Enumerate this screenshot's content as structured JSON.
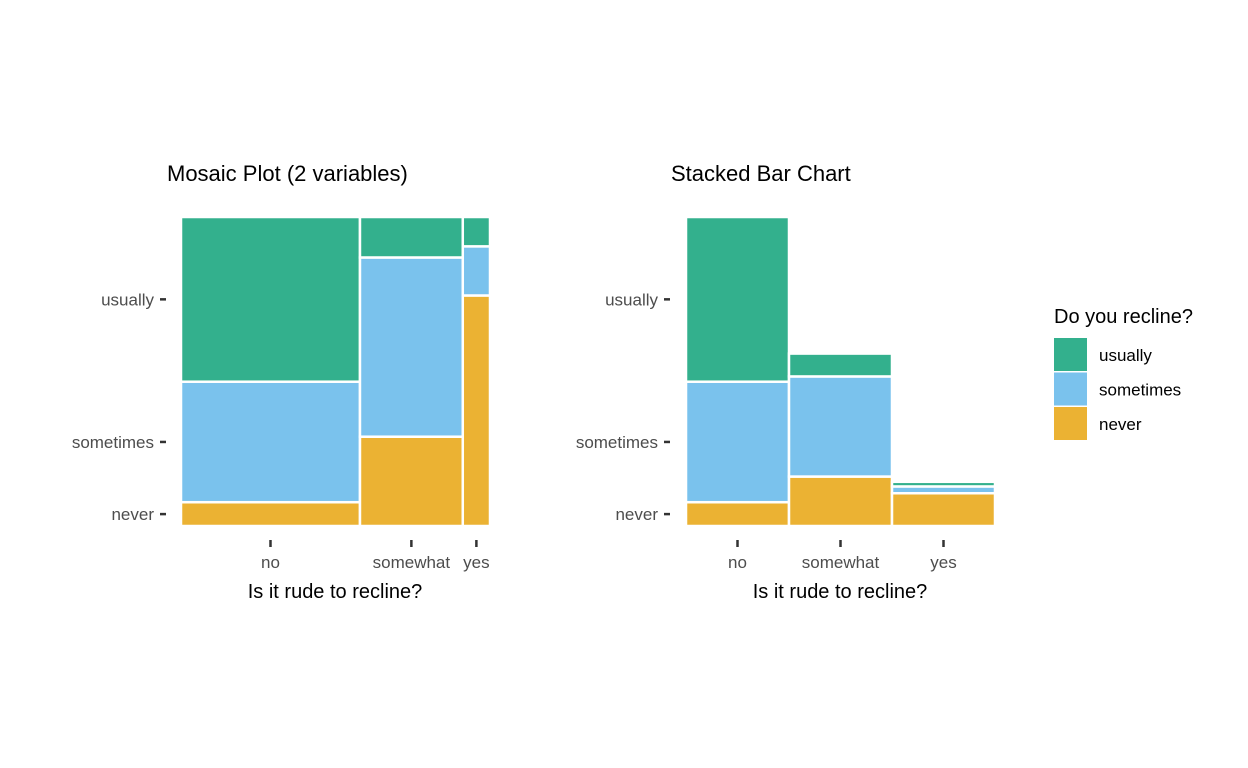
{
  "colors": {
    "usually": "#33b08d",
    "sometimes": "#7ac2ed",
    "never": "#ebb233"
  },
  "legend": {
    "title": "Do you recline?",
    "items": [
      {
        "key": "usually",
        "label": "usually"
      },
      {
        "key": "sometimes",
        "label": "sometimes"
      },
      {
        "key": "never",
        "label": "never"
      }
    ]
  },
  "chart_data": [
    {
      "type": "mosaic",
      "title": "Mosaic Plot (2 variables)",
      "xlabel": "Is it rude to recline?",
      "ylabel": "",
      "x_categories": [
        "no",
        "somewhat",
        "yes"
      ],
      "x_widths": [
        0.585,
        0.336,
        0.089
      ],
      "y_tick_labels": [
        "usually",
        "sometimes",
        "never"
      ],
      "stack_order": [
        "never",
        "sometimes",
        "usually"
      ],
      "proportions": {
        "no": {
          "never": 0.077,
          "sometimes": 0.39,
          "usually": 0.533
        },
        "somewhat": {
          "never": 0.289,
          "sometimes": 0.58,
          "usually": 0.131
        },
        "yes": {
          "never": 0.746,
          "sometimes": 0.159,
          "usually": 0.095
        }
      }
    },
    {
      "type": "bar",
      "stacked": true,
      "title": "Stacked Bar Chart",
      "xlabel": "Is it rude to recline?",
      "ylabel": "",
      "categories": [
        "no",
        "somewhat",
        "yes"
      ],
      "y_tick_labels": [
        "usually",
        "sometimes",
        "never"
      ],
      "series": [
        {
          "name": "never",
          "values": [
            0.077,
            0.16,
            0.106
          ]
        },
        {
          "name": "sometimes",
          "values": [
            0.39,
            0.324,
            0.022
          ]
        },
        {
          "name": "usually",
          "values": [
            0.533,
            0.074,
            0.015
          ]
        }
      ]
    }
  ]
}
